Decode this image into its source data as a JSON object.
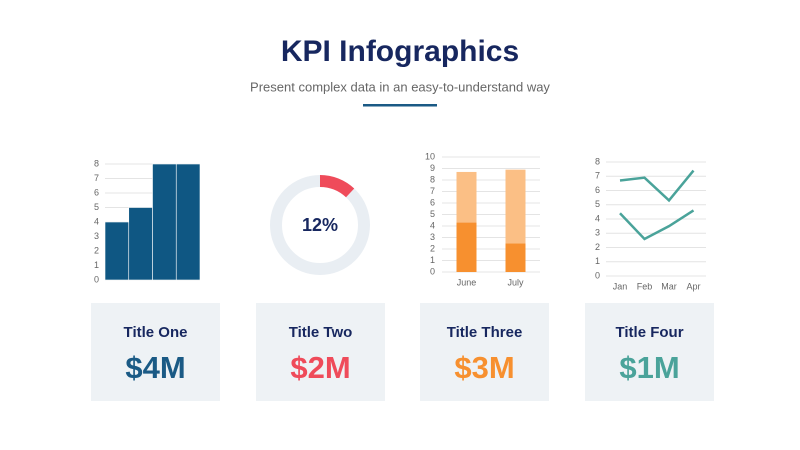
{
  "header": {
    "title": "KPI Infographics",
    "subtitle": "Present complex data in an easy-to-understand way"
  },
  "chart_data": [
    {
      "type": "bar",
      "categories": [
        null,
        null,
        null,
        null
      ],
      "values": [
        4,
        5,
        8,
        8
      ],
      "color": "#0f5783",
      "ylim": [
        0,
        8
      ],
      "yticks": [
        0,
        1,
        2,
        3,
        4,
        5,
        6,
        7,
        8
      ],
      "grid": true
    },
    {
      "type": "donut",
      "values": [
        12
      ],
      "value_labels": [
        "12%"
      ],
      "color": "#ef4b5a",
      "track_color": "#e9eef3"
    },
    {
      "type": "stacked_bar",
      "categories": [
        "June",
        "July"
      ],
      "series": [
        {
          "color": "#f7902f",
          "values": [
            4.3,
            2.5
          ]
        },
        {
          "color": "#fbbf85",
          "values": [
            4.4,
            6.4
          ]
        }
      ],
      "ylim": [
        0,
        10
      ],
      "yticks": [
        0,
        1,
        2,
        3,
        4,
        5,
        6,
        7,
        8,
        9,
        10
      ],
      "grid": true
    },
    {
      "type": "line",
      "categories": [
        "Jan",
        "Feb",
        "Mar",
        "Apr"
      ],
      "series": [
        {
          "color": "#4aa39a",
          "values": [
            6.7,
            6.9,
            5.3,
            7.4
          ]
        },
        {
          "color": "#4aa39a",
          "values": [
            4.4,
            2.6,
            3.5,
            4.6
          ]
        }
      ],
      "ylim": [
        0,
        8
      ],
      "yticks": [
        0,
        1,
        2,
        3,
        4,
        5,
        6,
        7,
        8
      ],
      "grid": true
    }
  ],
  "cards": [
    {
      "title": "Title One",
      "value": "$4M",
      "color": "#1a5a85"
    },
    {
      "title": "Title Two",
      "value": "$2M",
      "color": "#ef4b5a"
    },
    {
      "title": "Title Three",
      "value": "$3M",
      "color": "#f7902f"
    },
    {
      "title": "Title Four",
      "value": "$1M",
      "color": "#4aa39a"
    }
  ]
}
